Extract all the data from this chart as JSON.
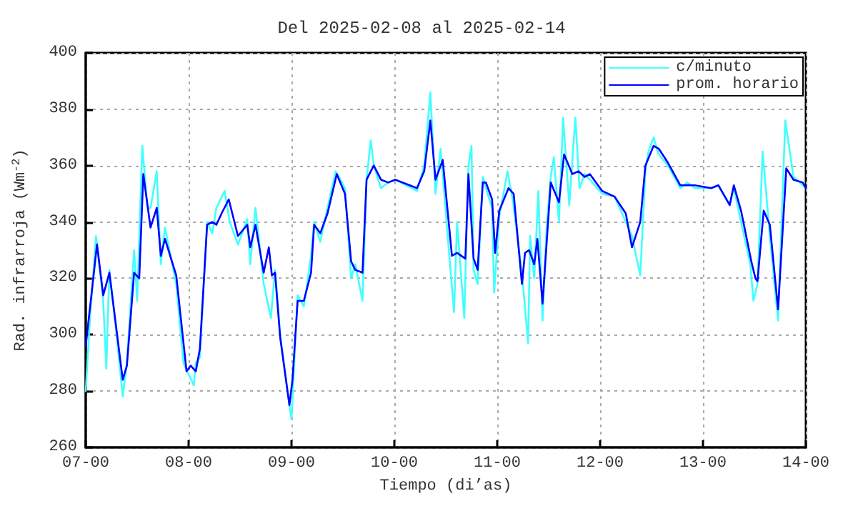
{
  "chart_data": {
    "type": "line",
    "title": "Del 2025-02-08 al 2025-02-14",
    "xlabel": "Tiempo (di’as)",
    "ylabel": "Rad. infrarroja (Wm$^{-2}$)",
    "xlim": [
      "2025-02-07T00:00",
      "2025-02-14T00:00"
    ],
    "xticks": [
      {
        "value": "2025-02-07T00:00",
        "label": "07-00"
      },
      {
        "value": "2025-02-08T00:00",
        "label": "08-00"
      },
      {
        "value": "2025-02-09T00:00",
        "label": "09-00"
      },
      {
        "value": "2025-02-10T00:00",
        "label": "10-00"
      },
      {
        "value": "2025-02-11T00:00",
        "label": "11-00"
      },
      {
        "value": "2025-02-12T00:00",
        "label": "12-00"
      },
      {
        "value": "2025-02-13T00:00",
        "label": "13-00"
      },
      {
        "value": "2025-02-14T00:00",
        "label": "14-00"
      }
    ],
    "ylim": [
      260,
      400
    ],
    "yticks": [
      260,
      280,
      300,
      320,
      340,
      360,
      380,
      400
    ],
    "grid": true,
    "legend": "top right",
    "marker": "none",
    "line_style": "solid",
    "series": [
      {
        "name": "c/minuto",
        "color": "#40ffff",
        "x": [
          "2025-02-07T00:00",
          "2025-02-07T00:58",
          "2025-02-07T02:24",
          "2025-02-07T04:05",
          "2025-02-07T04:48",
          "2025-02-07T05:31",
          "2025-02-07T07:12",
          "2025-02-07T08:38",
          "2025-02-07T09:36",
          "2025-02-07T11:17",
          "2025-02-07T12:00",
          "2025-02-07T13:12",
          "2025-02-07T14:24",
          "2025-02-07T15:07",
          "2025-02-07T16:34",
          "2025-02-07T17:31",
          "2025-02-07T18:29",
          "2025-02-07T21:07",
          "2025-02-07T22:48",
          "2025-02-08T01:12",
          "2025-02-08T01:41",
          "2025-02-08T02:38",
          "2025-02-08T04:19",
          "2025-02-08T05:31",
          "2025-02-08T06:29",
          "2025-02-08T08:24",
          "2025-02-08T09:36",
          "2025-02-08T11:31",
          "2025-02-08T13:41",
          "2025-02-08T14:24",
          "2025-02-08T15:36",
          "2025-02-08T17:31",
          "2025-02-08T19:12",
          "2025-02-08T20:10",
          "2025-02-08T21:22",
          "2025-02-08T23:31",
          "2025-02-09T00:00",
          "2025-02-09T01:26",
          "2025-02-09T02:53",
          "2025-02-09T04:34",
          "2025-02-09T05:17",
          "2025-02-09T06:43",
          "2025-02-09T08:24",
          "2025-02-09T10:19",
          "2025-02-09T12:29",
          "2025-02-09T13:55",
          "2025-02-09T14:53",
          "2025-02-09T16:34",
          "2025-02-09T17:31",
          "2025-02-09T18:29",
          "2025-02-09T19:12",
          "2025-02-09T20:53",
          "2025-02-09T22:34",
          "2025-02-10T00:14",
          "2025-02-10T05:17",
          "2025-02-10T06:58",
          "2025-02-10T08:24",
          "2025-02-10T09:36",
          "2025-02-10T10:48",
          "2025-02-10T12:43",
          "2025-02-10T13:55",
          "2025-02-10T14:38",
          "2025-02-10T16:19",
          "2025-02-10T17:17",
          "2025-02-10T18:00",
          "2025-02-10T18:29",
          "2025-02-10T19:26",
          "2025-02-10T20:38",
          "2025-02-10T21:22",
          "2025-02-10T22:48",
          "2025-02-10T23:17",
          "2025-02-11T00:29",
          "2025-02-11T02:24",
          "2025-02-11T03:36",
          "2025-02-11T05:46",
          "2025-02-11T07:12",
          "2025-02-11T07:41",
          "2025-02-11T08:38",
          "2025-02-11T09:36",
          "2025-02-11T10:34",
          "2025-02-11T11:31",
          "2025-02-11T12:29",
          "2025-02-11T13:12",
          "2025-02-11T14:24",
          "2025-02-11T15:22",
          "2025-02-11T16:48",
          "2025-02-11T18:14",
          "2025-02-11T19:12",
          "2025-02-11T20:24",
          "2025-02-11T21:36",
          "2025-02-12T00:29",
          "2025-02-12T03:22",
          "2025-02-12T06:00",
          "2025-02-12T07:26",
          "2025-02-12T09:22",
          "2025-02-12T10:34",
          "2025-02-12T11:17",
          "2025-02-12T12:29",
          "2025-02-12T13:41",
          "2025-02-12T15:50",
          "2025-02-12T18:43",
          "2025-02-12T20:24",
          "2025-02-12T22:05",
          "2025-02-13T01:55",
          "2025-02-13T03:36",
          "2025-02-13T06:14",
          "2025-02-13T07:12",
          "2025-02-13T08:53",
          "2025-02-13T11:02",
          "2025-02-13T11:46",
          "2025-02-13T12:43",
          "2025-02-13T13:55",
          "2025-02-13T15:36",
          "2025-02-13T17:31",
          "2025-02-13T19:12",
          "2025-02-13T21:07",
          "2025-02-13T23:17",
          "2025-02-14T00:00"
        ],
        "values": [
          280,
          305,
          335,
          312,
          288,
          323,
          300,
          278,
          290,
          330,
          312,
          367,
          345,
          345,
          358,
          325,
          338,
          318,
          290,
          282,
          290,
          292,
          340,
          336,
          345,
          351,
          340,
          332,
          341,
          325,
          345,
          318,
          306,
          323,
          300,
          275,
          270,
          314,
          310,
          328,
          340,
          333,
          345,
          358,
          352,
          320,
          325,
          312,
          355,
          369,
          360,
          352,
          354,
          355,
          351,
          360,
          386,
          350,
          366,
          330,
          308,
          340,
          306,
          360,
          367,
          323,
          318,
          356,
          352,
          345,
          315,
          342,
          358,
          348,
          322,
          297,
          335,
          320,
          351,
          305,
          338,
          356,
          363,
          340,
          377,
          346,
          377,
          352,
          357,
          355,
          350,
          349,
          340,
          335,
          321,
          358,
          365,
          370,
          364,
          360,
          352,
          354,
          352,
          352,
          353,
          346,
          352,
          340,
          325,
          312,
          318,
          365,
          335,
          305,
          376,
          356,
          353,
          352
        ]
      },
      {
        "name": "prom. horario",
        "color": "#0000ff",
        "x": [
          "2025-02-07T00:00",
          "2025-02-07T02:38",
          "2025-02-07T04:05",
          "2025-02-07T05:31",
          "2025-02-07T08:38",
          "2025-02-07T09:36",
          "2025-02-07T11:17",
          "2025-02-07T12:29",
          "2025-02-07T13:26",
          "2025-02-07T15:07",
          "2025-02-07T16:34",
          "2025-02-07T17:31",
          "2025-02-07T18:29",
          "2025-02-07T21:07",
          "2025-02-07T23:31",
          "2025-02-08T00:29",
          "2025-02-08T01:41",
          "2025-02-08T02:38",
          "2025-02-08T04:19",
          "2025-02-08T05:31",
          "2025-02-08T06:29",
          "2025-02-08T07:41",
          "2025-02-08T09:22",
          "2025-02-08T11:31",
          "2025-02-08T13:41",
          "2025-02-08T14:24",
          "2025-02-08T15:36",
          "2025-02-08T17:31",
          "2025-02-08T18:43",
          "2025-02-08T19:26",
          "2025-02-08T20:10",
          "2025-02-08T21:22",
          "2025-02-08T23:31",
          "2025-02-09T00:14",
          "2025-02-09T01:26",
          "2025-02-09T02:53",
          "2025-02-09T04:34",
          "2025-02-09T05:17",
          "2025-02-09T06:43",
          "2025-02-09T08:24",
          "2025-02-09T10:34",
          "2025-02-09T12:29",
          "2025-02-09T13:55",
          "2025-02-09T14:53",
          "2025-02-09T16:34",
          "2025-02-09T17:31",
          "2025-02-09T19:12",
          "2025-02-09T20:53",
          "2025-02-09T22:34",
          "2025-02-10T00:14",
          "2025-02-10T05:17",
          "2025-02-10T06:58",
          "2025-02-10T08:24",
          "2025-02-10T09:36",
          "2025-02-10T11:17",
          "2025-02-10T13:26",
          "2025-02-10T14:38",
          "2025-02-10T16:34",
          "2025-02-10T17:17",
          "2025-02-10T18:29",
          "2025-02-10T19:26",
          "2025-02-10T20:38",
          "2025-02-10T21:22",
          "2025-02-10T22:48",
          "2025-02-10T23:31",
          "2025-02-11T00:29",
          "2025-02-11T02:38",
          "2025-02-11T03:50",
          "2025-02-11T05:46",
          "2025-02-11T06:29",
          "2025-02-11T07:26",
          "2025-02-11T08:38",
          "2025-02-11T09:22",
          "2025-02-11T10:34",
          "2025-02-11T12:29",
          "2025-02-11T14:24",
          "2025-02-11T15:36",
          "2025-02-11T17:31",
          "2025-02-11T18:58",
          "2025-02-11T20:24",
          "2025-02-11T21:36",
          "2025-02-12T00:29",
          "2025-02-12T03:22",
          "2025-02-12T06:00",
          "2025-02-12T07:26",
          "2025-02-12T09:22",
          "2025-02-12T10:34",
          "2025-02-12T12:29",
          "2025-02-12T13:41",
          "2025-02-12T15:50",
          "2025-02-12T18:43",
          "2025-02-12T20:24",
          "2025-02-12T22:05",
          "2025-02-13T01:55",
          "2025-02-13T03:36",
          "2025-02-13T06:14",
          "2025-02-13T07:12",
          "2025-02-13T08:53",
          "2025-02-13T11:17",
          "2025-02-13T12:14",
          "2025-02-13T12:43",
          "2025-02-13T14:10",
          "2025-02-13T15:36",
          "2025-02-13T17:31",
          "2025-02-13T19:26",
          "2025-02-13T21:07",
          "2025-02-13T23:17",
          "2025-02-14T00:00"
        ],
        "values": [
          296,
          332,
          314,
          322,
          284,
          289,
          322,
          320,
          357,
          338,
          345,
          328,
          334,
          321,
          287,
          289,
          287,
          295,
          339,
          340,
          339,
          343,
          348,
          335,
          339,
          331,
          339,
          322,
          331,
          321,
          322,
          299,
          275,
          284,
          312,
          312,
          322,
          339,
          336,
          343,
          357,
          350,
          326,
          323,
          322,
          355,
          360,
          355,
          354,
          355,
          352,
          358,
          376,
          355,
          362,
          328,
          329,
          327,
          357,
          327,
          323,
          354,
          354,
          348,
          329,
          344,
          352,
          350,
          318,
          329,
          330,
          325,
          334,
          311,
          354,
          347,
          364,
          357,
          358,
          356,
          357,
          351,
          349,
          343,
          331,
          340,
          360,
          367,
          366,
          361,
          353,
          353,
          353,
          352,
          353,
          346,
          353,
          344,
          326,
          320,
          319,
          344,
          339,
          309,
          359,
          355,
          354,
          352
        ]
      }
    ]
  }
}
